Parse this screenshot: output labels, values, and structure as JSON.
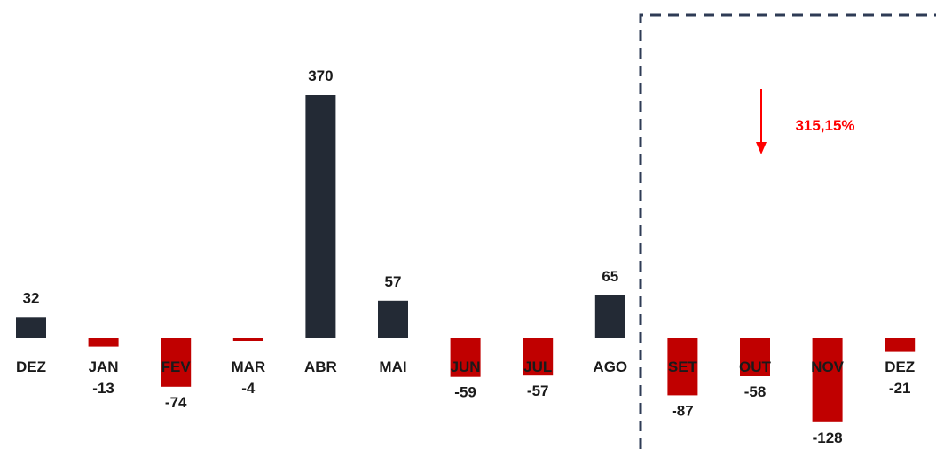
{
  "chart_data": {
    "type": "bar",
    "categories": [
      "DEZ",
      "JAN",
      "FEV",
      "MAR",
      "ABR",
      "MAI",
      "JUN",
      "JUL",
      "AGO",
      "SET",
      "OUT",
      "NOV",
      "DEZ"
    ],
    "values": [
      32,
      -13,
      -74,
      -4,
      370,
      57,
      -59,
      -57,
      65,
      -87,
      -58,
      -128,
      -21
    ],
    "colors": {
      "positive": "#232a35",
      "negative": "#c00000",
      "annotation": "#ff0000",
      "highlight_border": "#2e3b55"
    },
    "highlight_from_category_index": 9,
    "annotation": {
      "text": "315,15%",
      "arrow": "down-arrow"
    },
    "grid": false,
    "legend": "none"
  }
}
